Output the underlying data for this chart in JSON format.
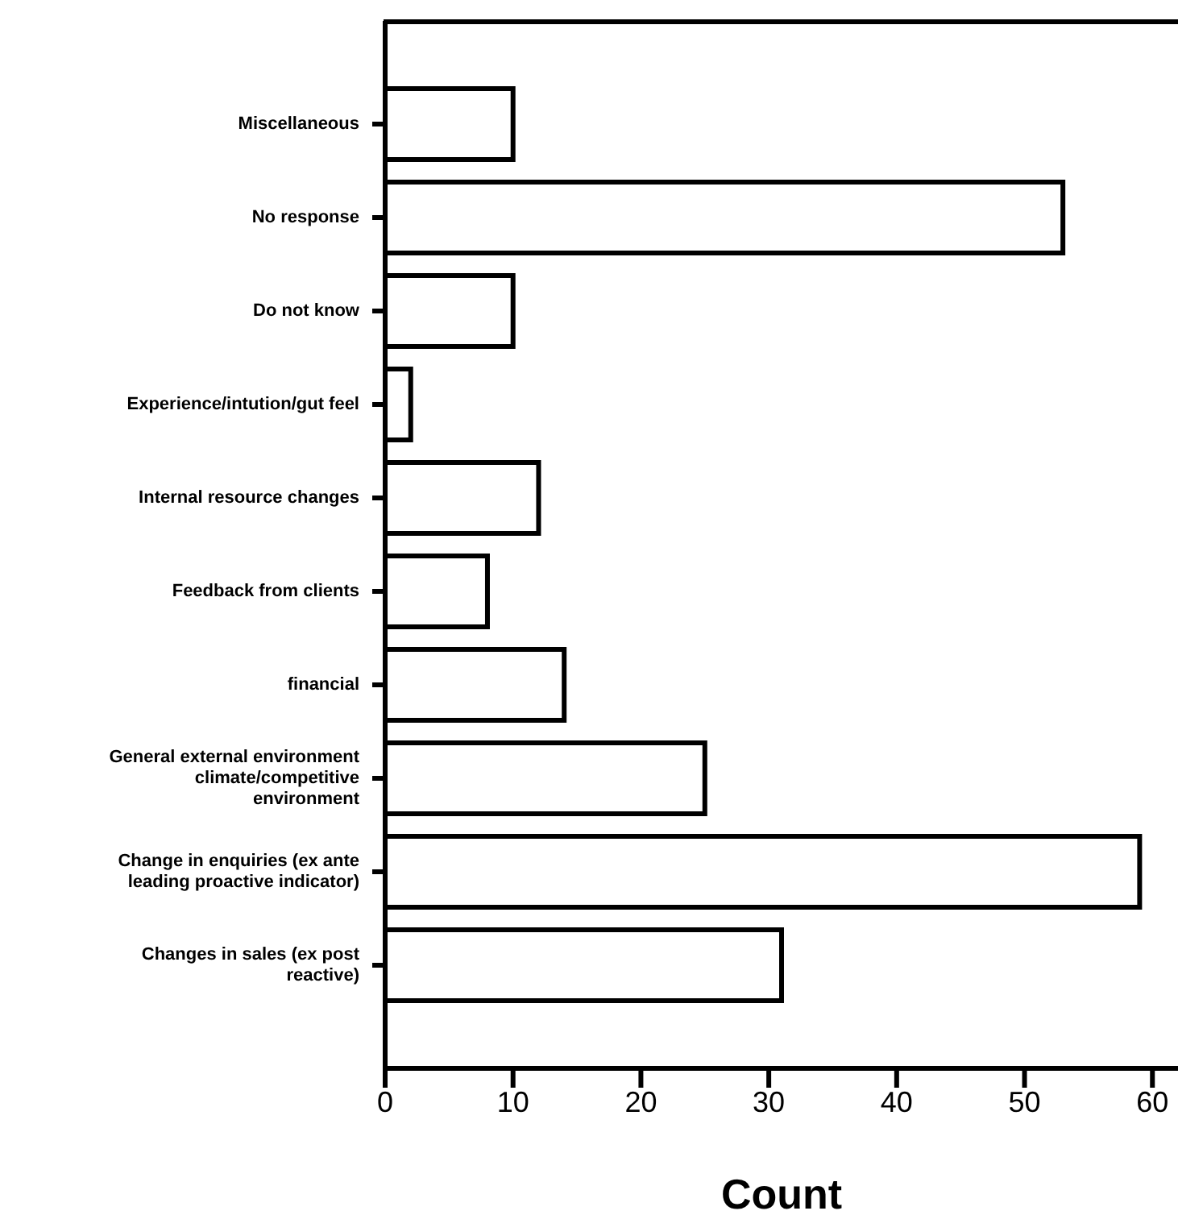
{
  "chart_data": {
    "type": "bar",
    "orientation": "horizontal",
    "xlabel": "Count",
    "categories": [
      "Miscellaneous",
      "No response",
      "Do not know",
      "Experience/intution/gut feel",
      "Internal resource changes",
      "Feedback from clients",
      "financial",
      "General external environment climate/competitive environment",
      "Change in enquiries (ex ante leading proactive indicator)",
      "Changes in sales (ex post reactive)"
    ],
    "values": [
      10,
      53,
      10,
      2,
      12,
      8,
      14,
      25,
      59,
      31
    ],
    "color": "#ffffff",
    "xlim": [
      0,
      62
    ],
    "xticks": [
      0,
      10,
      20,
      30,
      40,
      50,
      60
    ],
    "grid": false,
    "legend": false
  }
}
